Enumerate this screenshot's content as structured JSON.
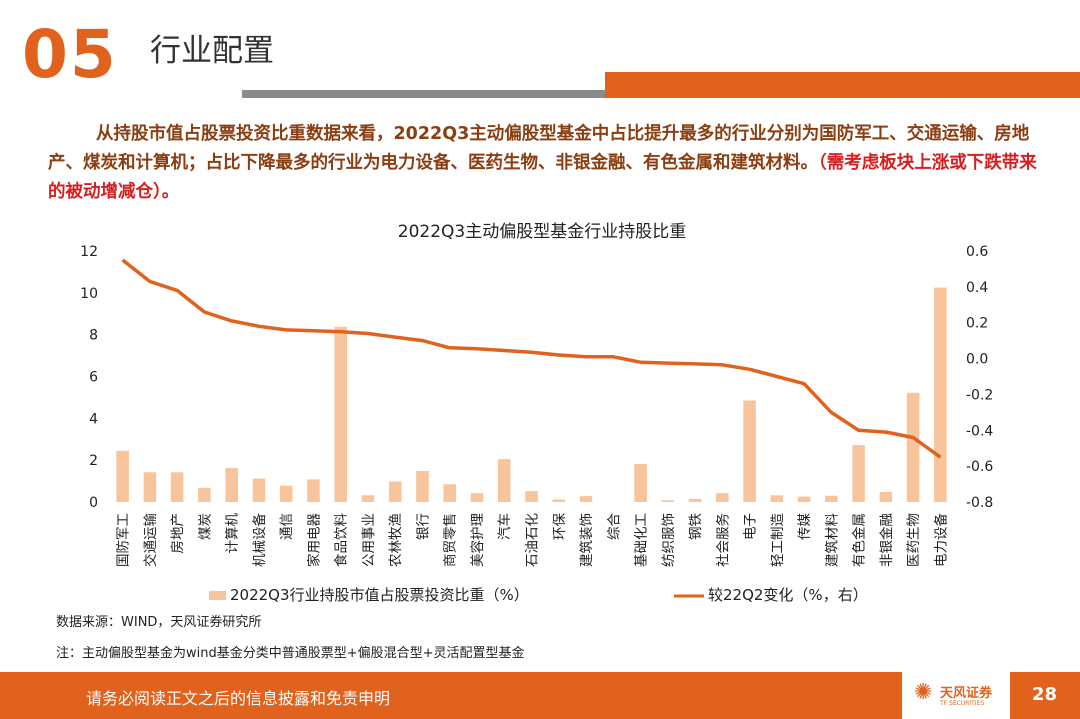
{
  "header": {
    "section_number": "05",
    "section_title": "行业配置"
  },
  "summary": {
    "text": "从持股市值占股票投资比重数据来看，2022Q3主动偏股型基金中占比提升最多的行业分别为国防军工、交通运输、房地产、煤炭和计算机；占比下降最多的行业为电力设备、医药生物、非银金融、有色金属和建筑材料。",
    "note": "（需考虑板块上涨或下跌带来的被动增减仓）。"
  },
  "chart_data": {
    "type": "bar",
    "title": "2022Q3主动偏股型基金行业持股比重",
    "categories": [
      "国防军工",
      "交通运输",
      "房地产",
      "煤炭",
      "计算机",
      "机械设备",
      "通信",
      "家用电器",
      "食品饮料",
      "公用事业",
      "农林牧渔",
      "银行",
      "商贸零售",
      "美容护理",
      "汽车",
      "石油石化",
      "环保",
      "建筑装饰",
      "综合",
      "基础化工",
      "纺织服饰",
      "钢铁",
      "社会服务",
      "电子",
      "轻工制造",
      "传媒",
      "建筑材料",
      "有色金属",
      "非银金融",
      "医药生物",
      "电力设备"
    ],
    "series": [
      {
        "name": "2022Q3行业持股市值占股票投资比重（%）",
        "type": "bar",
        "axis": "left",
        "color": "#f7c49b",
        "values": [
          2.45,
          1.42,
          1.42,
          0.68,
          1.62,
          1.12,
          0.78,
          1.08,
          8.38,
          0.32,
          0.98,
          1.48,
          0.85,
          0.42,
          2.05,
          0.52,
          0.12,
          0.28,
          0.0,
          1.82,
          0.08,
          0.15,
          0.42,
          4.85,
          0.32,
          0.26,
          0.3,
          2.72,
          0.48,
          5.22,
          10.25
        ]
      },
      {
        "name": "较22Q2变化（%，右）",
        "type": "line",
        "axis": "right",
        "color": "#e0621c",
        "values": [
          0.55,
          0.43,
          0.38,
          0.26,
          0.21,
          0.18,
          0.16,
          0.155,
          0.15,
          0.14,
          0.12,
          0.1,
          0.06,
          0.055,
          0.045,
          0.035,
          0.02,
          0.01,
          0.01,
          -0.02,
          -0.025,
          -0.03,
          -0.035,
          -0.06,
          -0.1,
          -0.14,
          -0.3,
          -0.4,
          -0.41,
          -0.44,
          -0.55
        ]
      }
    ],
    "y_left": {
      "min": 0,
      "max": 12,
      "ticks": [
        "0",
        "2",
        "4",
        "6",
        "8",
        "10",
        "12"
      ]
    },
    "y_right": {
      "min": -0.8,
      "max": 0.6,
      "ticks": [
        "-0.8",
        "-0.6",
        "-0.4",
        "-0.2",
        "0.0",
        "0.2",
        "0.4",
        "0.6"
      ]
    },
    "legend_position": "bottom",
    "grid": false
  },
  "source": "数据来源：WIND，天风证券研究所",
  "footnote": "注：主动偏股型基金为wind基金分类中普通股票型+偏股混合型+灵活配置型基金",
  "footer": {
    "disclaimer": "请务必阅读正文之后的信息披露和免责申明",
    "brand": "天风证券",
    "brand_sub": "TF SECURITIES",
    "page": "28"
  },
  "colors": {
    "accent": "#e0621c",
    "bar": "#f7c49b",
    "grey_bar": "#8a8a8a"
  }
}
